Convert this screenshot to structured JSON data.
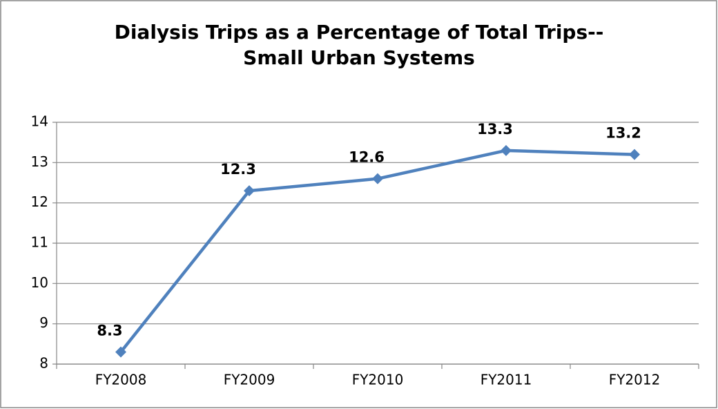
{
  "chart_data": {
    "type": "line",
    "title": "Dialysis Trips as a Percentage of Total Trips--Small Urban Systems",
    "categories": [
      "FY2008",
      "FY2009",
      "FY2010",
      "FY2011",
      "FY2012"
    ],
    "values": [
      8.3,
      12.3,
      12.6,
      13.3,
      13.2
    ],
    "color": "#4f81bd",
    "ylim": [
      8,
      14
    ],
    "yticks": [
      8,
      9,
      10,
      11,
      12,
      13,
      14
    ],
    "grid": true
  }
}
